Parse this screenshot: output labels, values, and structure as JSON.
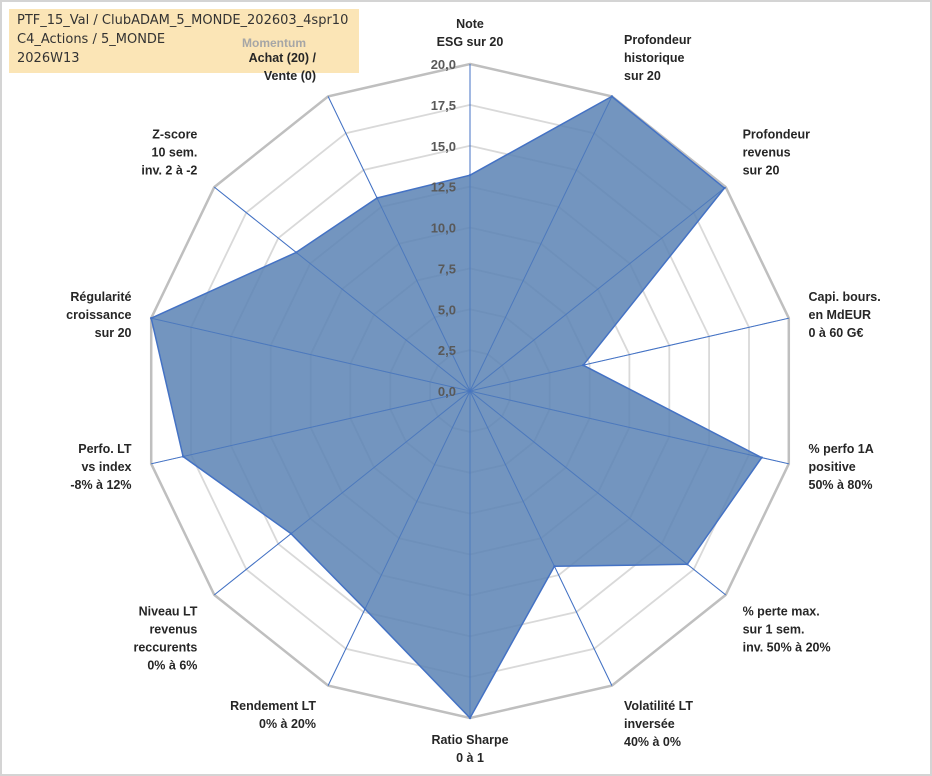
{
  "info": {
    "line1": "PTF_15_Val / ClubADAM_5_MONDE_202603_4spr10",
    "line2": "C4_Actions / 5_MONDE",
    "line3": "2026W13"
  },
  "colors": {
    "fill": "#5b82b4",
    "stroke": "#4472c4",
    "spokes": "#4472c4",
    "outer_ring": "#bfbfbf",
    "inner_rings": "#d9d9d9",
    "info_bg": "#fbe5b6"
  },
  "chart_data": {
    "type": "radar",
    "title": "",
    "range": [
      0,
      20
    ],
    "ticks": [
      "0,0",
      "2,5",
      "5,0",
      "7,5",
      "10,0",
      "12,5",
      "15,0",
      "17,5",
      "20,0"
    ],
    "group_label": "Momentum",
    "axes": [
      {
        "label": [
          "Note",
          "ESG sur 20"
        ]
      },
      {
        "label": [
          "Profondeur",
          "historique",
          "sur 20"
        ]
      },
      {
        "label": [
          "Profondeur",
          "revenus",
          "sur 20"
        ]
      },
      {
        "label": [
          "Capi. bours.",
          "en MdEUR",
          "0 à 60 G€"
        ]
      },
      {
        "label": [
          "% perfo 1A",
          "positive",
          "50% à 80%"
        ]
      },
      {
        "label": [
          "% perte max.",
          "sur 1 sem.",
          "inv. 50% à 20%"
        ]
      },
      {
        "label": [
          "Volatilité LT",
          "inversée",
          "40% à 0%"
        ]
      },
      {
        "label": [
          "Ratio Sharpe",
          "0 à 1"
        ]
      },
      {
        "label": [
          "Rendement LT",
          "0% à 20%"
        ]
      },
      {
        "label": [
          "Niveau LT",
          "revenus",
          "reccurents",
          "0% à 6%"
        ]
      },
      {
        "label": [
          "Perfo. LT",
          "vs index",
          "-8% à 12%"
        ]
      },
      {
        "label": [
          "Régularité",
          "croissance",
          "sur 20"
        ]
      },
      {
        "label": [
          "Z-score",
          "10 sem.",
          "inv. 2 à -2"
        ]
      },
      {
        "label": [
          "Achat (20) /",
          "Vente (0)"
        ]
      }
    ],
    "values": [
      13.2,
      20.0,
      19.9,
      7.1,
      18.3,
      17.0,
      11.9,
      20.0,
      14.8,
      14.0,
      18.0,
      20.0,
      13.6,
      13.1
    ]
  }
}
